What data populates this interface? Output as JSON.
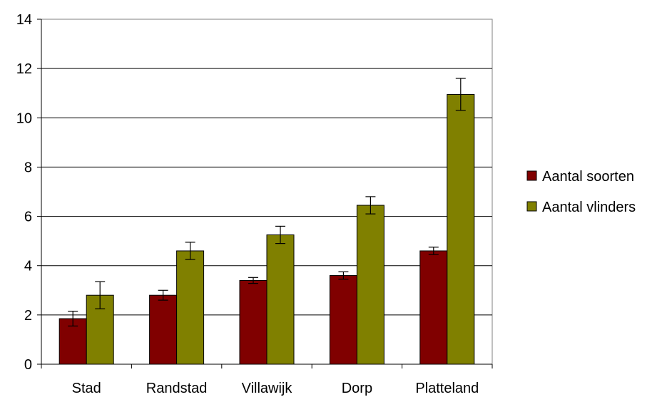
{
  "chart_data": {
    "type": "bar",
    "categories": [
      "Stad",
      "Randstad",
      "Villawijk",
      "Dorp",
      "Platteland"
    ],
    "series": [
      {
        "name": "Aantal soorten",
        "color": "#800000",
        "values": [
          1.85,
          2.8,
          3.4,
          3.6,
          4.6
        ],
        "error": [
          0.3,
          0.2,
          0.12,
          0.15,
          0.15
        ]
      },
      {
        "name": "Aantal vlinders",
        "color": "#808000",
        "values": [
          2.8,
          4.6,
          5.25,
          6.45,
          10.95
        ],
        "error": [
          0.55,
          0.35,
          0.35,
          0.35,
          0.65
        ]
      }
    ],
    "ylim": [
      0,
      14
    ],
    "yticks": [
      "0",
      "2",
      "4",
      "6",
      "8",
      "10",
      "12",
      "14"
    ],
    "grid": true,
    "legend": "right",
    "title": "",
    "xlabel": "",
    "ylabel": ""
  }
}
